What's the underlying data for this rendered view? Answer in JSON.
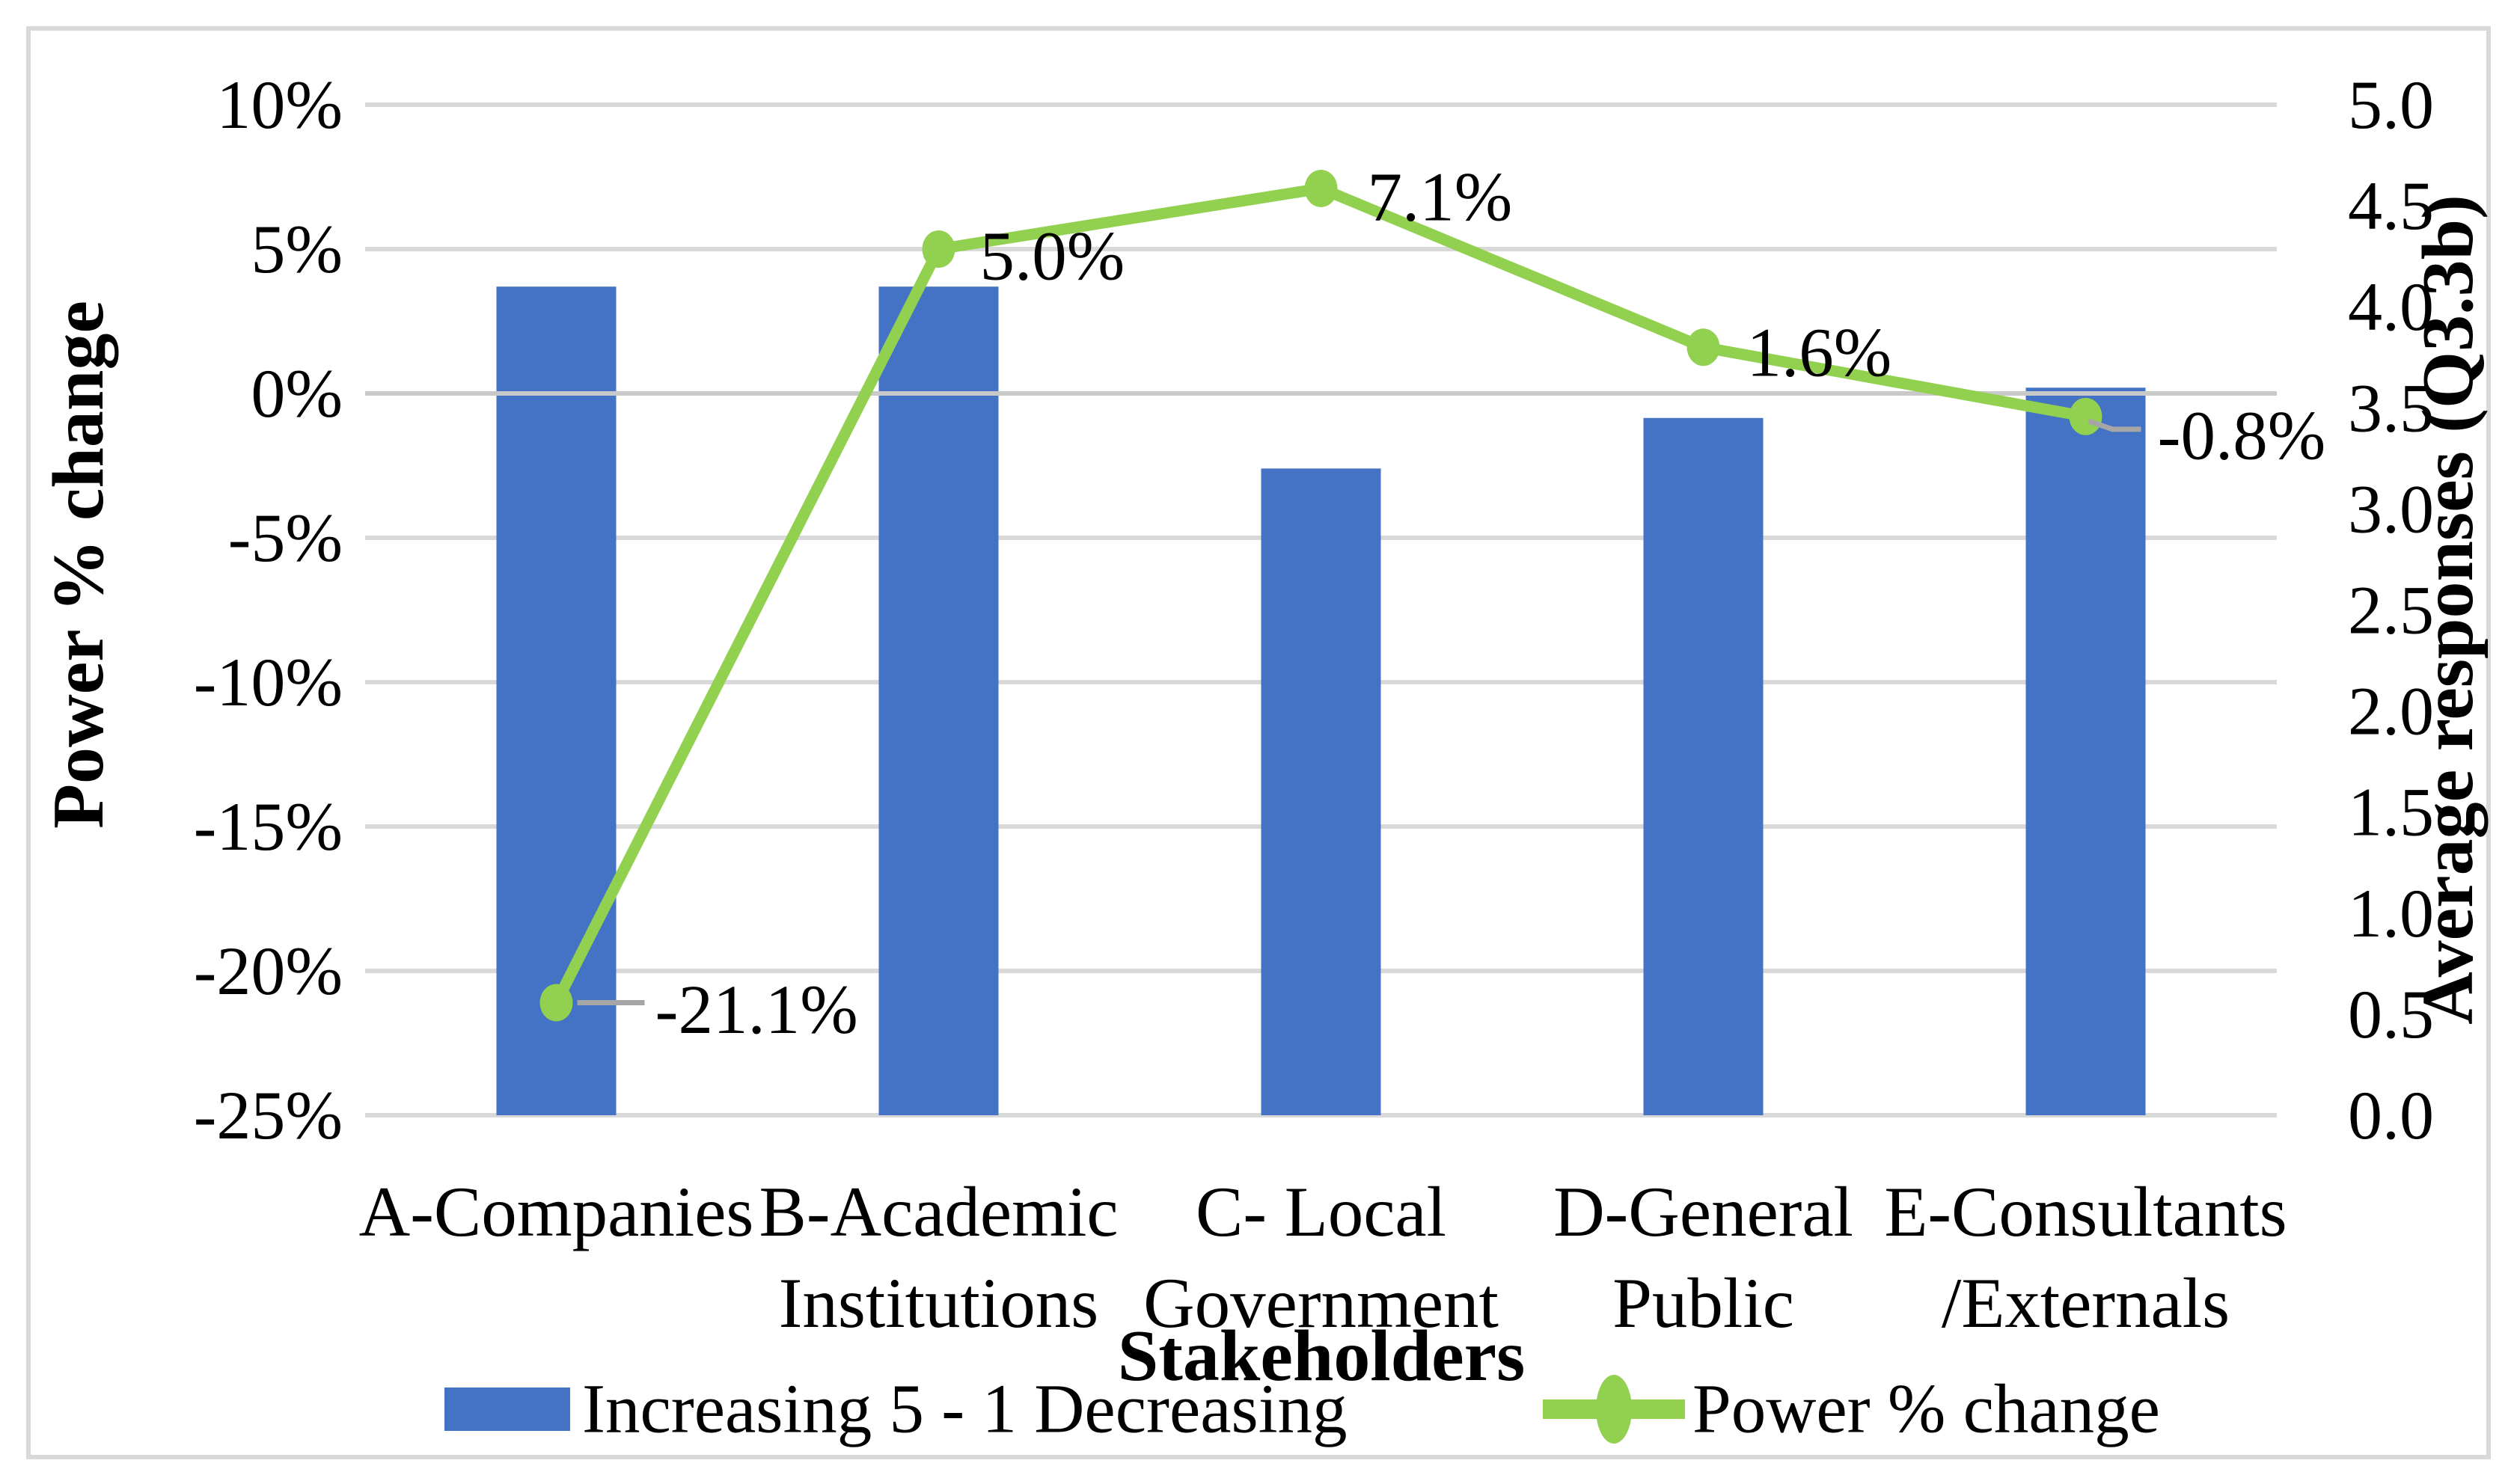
{
  "chart_data": {
    "type": "combo-bar-line",
    "title": "",
    "categories": [
      {
        "lines": [
          "A-Companies",
          ""
        ]
      },
      {
        "lines": [
          "B-Academic",
          "Institutions"
        ]
      },
      {
        "lines": [
          "C- Local",
          "Government"
        ]
      },
      {
        "lines": [
          "D-General",
          "Public"
        ]
      },
      {
        "lines": [
          "E-Consultants",
          "/Externals"
        ]
      }
    ],
    "series": [
      {
        "name": "Increasing 5 - 1 Decreasing",
        "type": "bar",
        "axis": "right",
        "values": [
          4.1,
          4.1,
          3.2,
          3.45,
          3.6
        ]
      },
      {
        "name": "Power % change",
        "type": "line",
        "axis": "left",
        "values": [
          -21.1,
          5.0,
          7.1,
          1.6,
          -0.8
        ],
        "labels": [
          "-21.1%",
          "5.0%",
          "7.1%",
          "1.6%",
          "-0.8%"
        ]
      }
    ],
    "left_axis": {
      "title": "Power % change",
      "ticks": [
        "10%",
        "5%",
        "0%",
        "-5%",
        "-10%",
        "-15%",
        "-20%",
        "-25%"
      ],
      "max": 10,
      "min": -25,
      "step": 5
    },
    "right_axis": {
      "title": "Average responses (Q3.3b)",
      "ticks": [
        "5.0",
        "4.5",
        "4.0",
        "3.5",
        "3.0",
        "2.5",
        "2.0",
        "1.5",
        "1.0",
        "0.5",
        "0.0"
      ],
      "max": 5.0,
      "min": 0.0,
      "step": 0.5
    },
    "x_axis": {
      "title": "Stakeholders"
    },
    "legend": [
      {
        "label": "Increasing 5 - 1 Decreasing",
        "swatch": "bar"
      },
      {
        "label": "Power % change",
        "swatch": "line-marker"
      }
    ],
    "legend_position": "bottom",
    "grid": true,
    "colors": {
      "bar": "#4472C4",
      "line": "#92D050",
      "gridline": "#D9D9D9",
      "zero_axis": "#C9C9C9",
      "leader": "#A6A6A6",
      "border": "#D9D9D9",
      "background": "#FFFFFF",
      "text": "#000000"
    }
  }
}
